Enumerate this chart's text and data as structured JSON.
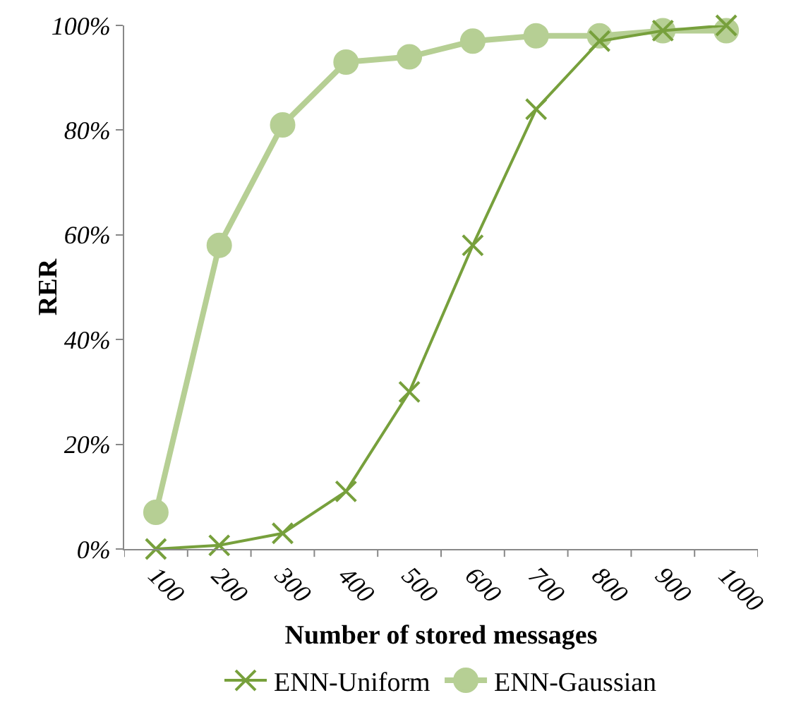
{
  "chart_data": {
    "type": "line",
    "xlabel": "Number of stored messages",
    "ylabel": "RER",
    "categories": [
      "100",
      "200",
      "300",
      "400",
      "500",
      "600",
      "700",
      "800",
      "900",
      "1000"
    ],
    "series": [
      {
        "name": "ENN-Uniform",
        "color": "#77a03c",
        "marker": "cross",
        "values": [
          0,
          0.7,
          3,
          11,
          30,
          58,
          84,
          97,
          99,
          100
        ]
      },
      {
        "name": "ENN-Gaussian",
        "color": "#b6cf94",
        "marker": "circle",
        "values": [
          7,
          58,
          81,
          93,
          94,
          97,
          98,
          98,
          99,
          99
        ]
      }
    ],
    "ylim": [
      0,
      100
    ],
    "yticks": [
      {
        "value": 0,
        "label": "0%"
      },
      {
        "value": 20,
        "label": "20%"
      },
      {
        "value": 40,
        "label": "40%"
      },
      {
        "value": 60,
        "label": "60%"
      },
      {
        "value": 80,
        "label": "80%"
      },
      {
        "value": 100,
        "label": "100%"
      }
    ],
    "grid": false,
    "legend": "bottom",
    "line_style": "solid"
  }
}
